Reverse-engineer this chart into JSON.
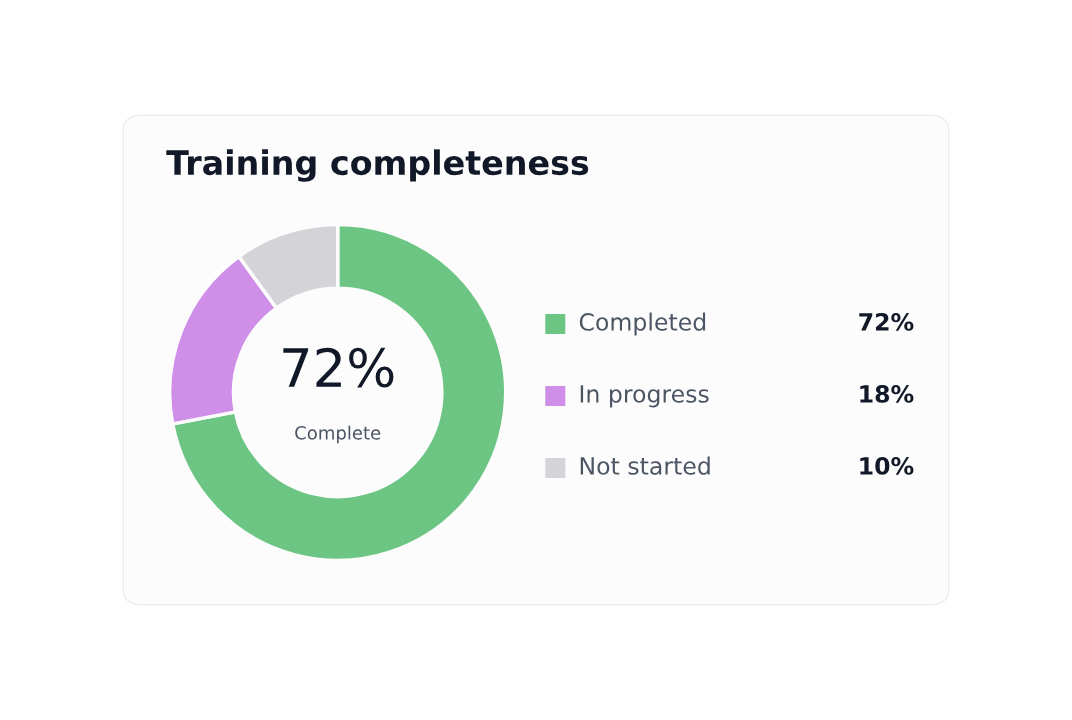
{
  "chart_data": {
    "type": "donut",
    "title": "Training completeness",
    "categories": [
      "Completed",
      "In progress",
      "Not started"
    ],
    "values": [
      72,
      18,
      10
    ],
    "colors": [
      "#6cc583",
      "#cf8ee8",
      "#d4d4d8"
    ],
    "value_labels": [
      "72%",
      "18%",
      "10%"
    ],
    "annotations": [
      "72%",
      "Complete"
    ],
    "legend": "right"
  }
}
